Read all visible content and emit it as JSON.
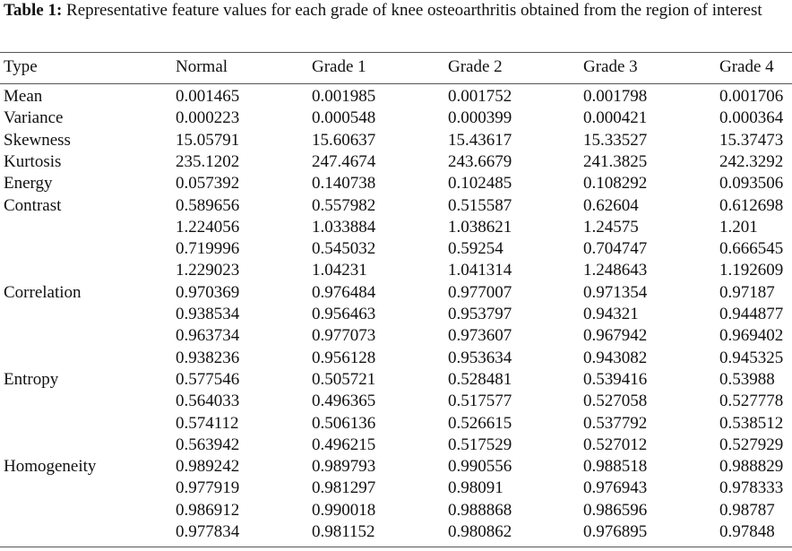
{
  "caption": {
    "label": "Table 1:",
    "text": "Representative feature values for each grade of knee osteoarthritis obtained from the region of interest"
  },
  "table": {
    "header": [
      "Type",
      "Normal",
      "Grade 1",
      "Grade 2",
      "Grade 3",
      "Grade 4"
    ],
    "groups": [
      {
        "type": "Mean",
        "rows": [
          [
            "0.001465",
            "0.001985",
            "0.001752",
            "0.001798",
            "0.001706"
          ]
        ]
      },
      {
        "type": "Variance",
        "rows": [
          [
            "0.000223",
            "0.000548",
            "0.000399",
            "0.000421",
            "0.000364"
          ]
        ]
      },
      {
        "type": "Skewness",
        "rows": [
          [
            "15.05791",
            "15.60637",
            "15.43617",
            "15.33527",
            "15.37473"
          ]
        ]
      },
      {
        "type": "Kurtosis",
        "rows": [
          [
            "235.1202",
            "247.4674",
            "243.6679",
            "241.3825",
            "242.3292"
          ]
        ]
      },
      {
        "type": "Energy",
        "rows": [
          [
            "0.057392",
            "0.140738",
            "0.102485",
            "0.108292",
            "0.093506"
          ]
        ]
      },
      {
        "type": "Contrast",
        "rows": [
          [
            "0.589656",
            "0.557982",
            "0.515587",
            "0.62604",
            "0.612698"
          ],
          [
            "1.224056",
            "1.033884",
            "1.038621",
            "1.24575",
            "1.201"
          ],
          [
            "0.719996",
            "0.545032",
            "0.59254",
            "0.704747",
            "0.666545"
          ],
          [
            "1.229023",
            "1.04231",
            "1.041314",
            "1.248643",
            "1.192609"
          ]
        ]
      },
      {
        "type": "Correlation",
        "rows": [
          [
            "0.970369",
            "0.976484",
            "0.977007",
            "0.971354",
            "0.97187"
          ],
          [
            "0.938534",
            "0.956463",
            "0.953797",
            "0.94321",
            "0.944877"
          ],
          [
            "0.963734",
            "0.977073",
            "0.973607",
            "0.967942",
            "0.969402"
          ],
          [
            "0.938236",
            "0.956128",
            "0.953634",
            "0.943082",
            "0.945325"
          ]
        ]
      },
      {
        "type": "Entropy",
        "rows": [
          [
            "0.577546",
            "0.505721",
            "0.528481",
            "0.539416",
            "0.53988"
          ],
          [
            "0.564033",
            "0.496365",
            "0.517577",
            "0.527058",
            "0.527778"
          ],
          [
            "0.574112",
            "0.506136",
            "0.526615",
            "0.537792",
            "0.538512"
          ],
          [
            "0.563942",
            "0.496215",
            "0.517529",
            "0.527012",
            "0.527929"
          ]
        ]
      },
      {
        "type": "Homogeneity",
        "rows": [
          [
            "0.989242",
            "0.989793",
            "0.990556",
            "0.988518",
            "0.988829"
          ],
          [
            "0.977919",
            "0.981297",
            "0.98091",
            "0.976943",
            "0.978333"
          ],
          [
            "0.986912",
            "0.990018",
            "0.988868",
            "0.986596",
            "0.98787"
          ],
          [
            "0.977834",
            "0.981152",
            "0.980862",
            "0.976895",
            "0.97848"
          ]
        ]
      }
    ]
  }
}
